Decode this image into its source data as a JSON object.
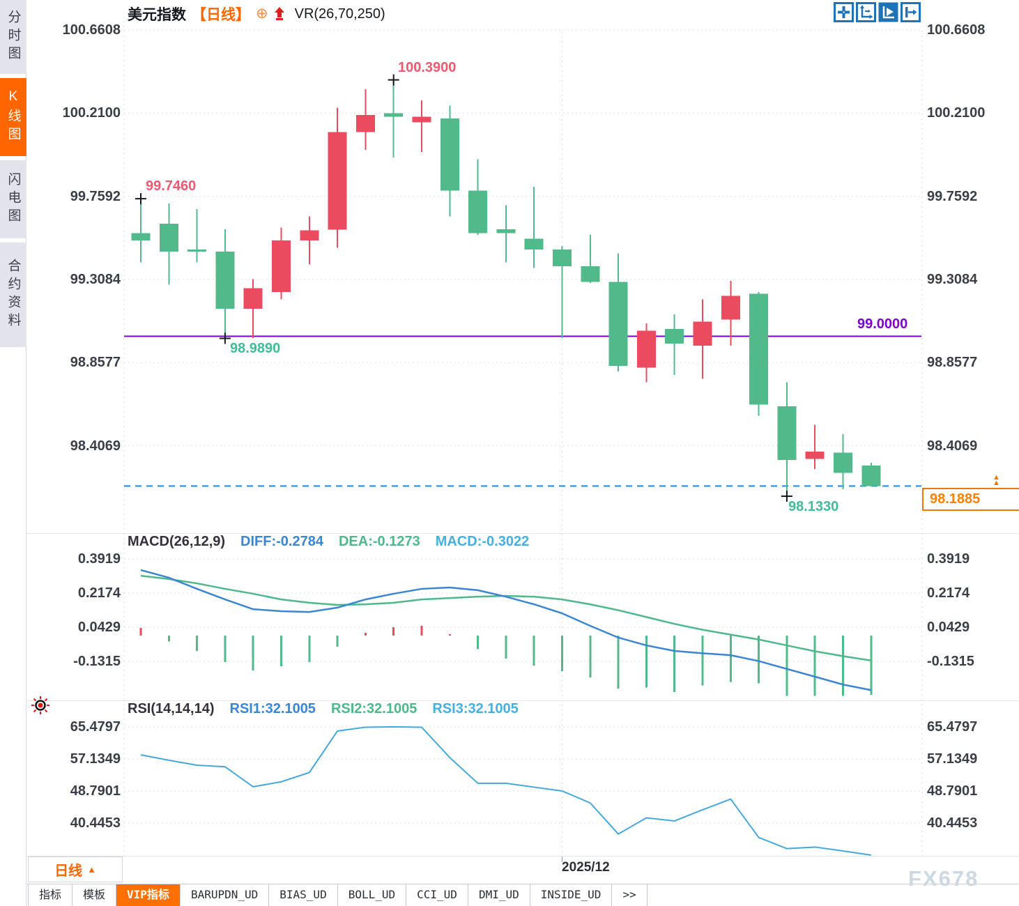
{
  "sidebar": {
    "tabs": [
      {
        "label": "分时图",
        "active": false
      },
      {
        "label": "K线图",
        "active": true
      },
      {
        "label": "闪电图",
        "active": false
      },
      {
        "label": "合约资料",
        "active": false
      }
    ]
  },
  "header": {
    "symbol": "美元指数",
    "period_tag": "【日线】",
    "overlay_indicator": "VR(26,70,250)"
  },
  "icons": {
    "add_overlay": "⊕",
    "triangle_up": "▲",
    "double_up_marker": "▲▲",
    "toolbar": [
      "crosshair-icon",
      "axis-scale-icon",
      "auto-scroll-icon",
      "jump-latest-icon"
    ]
  },
  "price_panel": {
    "y_axis": [
      "100.6608",
      "100.2100",
      "99.7592",
      "99.3084",
      "98.8577",
      "98.4069"
    ],
    "annotations": {
      "high_first": "99.7460",
      "high_peak": "100.3900",
      "low_first": "98.9890",
      "low_last": "98.1330"
    },
    "hline_label": "99.0000",
    "last_price": "98.1885"
  },
  "macd_panel": {
    "title": "MACD(26,12,9)",
    "diff_label": "DIFF:-0.2784",
    "dea_label": "DEA:-0.1273",
    "macd_label": "MACD:-0.3022",
    "y_axis": [
      "0.3919",
      "0.2174",
      "0.0429",
      "-0.1315"
    ]
  },
  "rsi_panel": {
    "title": "RSI(14,14,14)",
    "rsi1_label": "RSI1:32.1005",
    "rsi2_label": "RSI2:32.1005",
    "rsi3_label": "RSI3:32.1005",
    "y_axis": [
      "65.4797",
      "57.1349",
      "48.7901",
      "40.4453"
    ]
  },
  "bottom": {
    "timeframe": "日线",
    "date_label": "2025/12",
    "watermark": "FX678",
    "tabs": [
      {
        "label": "指标",
        "active": false
      },
      {
        "label": "模板",
        "active": false
      },
      {
        "label": "VIP指标",
        "active": true
      },
      {
        "label": "BARUPDN_UD",
        "active": false
      },
      {
        "label": "BIAS_UD",
        "active": false
      },
      {
        "label": "BOLL_UD",
        "active": false
      },
      {
        "label": "CCI_UD",
        "active": false
      },
      {
        "label": "DMI_UD",
        "active": false
      },
      {
        "label": "INSIDE_UD",
        "active": false
      },
      {
        "label": ">>",
        "active": false
      }
    ]
  },
  "colors": {
    "up": "#ea4b5f",
    "down": "#52b98b",
    "accent": "#ff6600",
    "diff_line": "#3a86d4",
    "dea_line": "#4db98b",
    "rsi_line": "#45a8dc",
    "hline": "#7d00cc",
    "last_price_dash": "#1e86e8",
    "toolbar_blue": "#1d72b8",
    "grid": "#e2e2ea",
    "marker_cross": "#15181d"
  },
  "chart_data": {
    "type": "candlestick",
    "title": "美元指数 日线 (US Dollar Index, daily)",
    "convention": "red=up(close>open), green=down",
    "panels": [
      "price",
      "MACD",
      "RSI"
    ],
    "price_axis_ticks": [
      100.6608,
      100.21,
      99.7592,
      99.3084,
      98.8577,
      98.4069
    ],
    "candles_ohlc": [
      [
        99.56,
        99.746,
        99.4,
        99.52
      ],
      [
        99.61,
        99.72,
        99.28,
        99.46
      ],
      [
        99.47,
        99.69,
        99.4,
        99.46
      ],
      [
        99.46,
        99.58,
        98.989,
        99.15
      ],
      [
        99.15,
        99.31,
        98.99,
        99.26
      ],
      [
        99.24,
        99.59,
        99.2,
        99.52
      ],
      [
        99.52,
        99.65,
        99.39,
        99.575
      ],
      [
        99.578,
        100.24,
        99.48,
        100.107
      ],
      [
        100.107,
        100.34,
        100.01,
        100.2
      ],
      [
        100.21,
        100.39,
        99.97,
        100.19
      ],
      [
        100.16,
        100.28,
        100.0,
        100.19
      ],
      [
        100.18,
        100.25,
        99.65,
        99.79
      ],
      [
        99.79,
        99.96,
        99.55,
        99.56
      ],
      [
        99.58,
        99.71,
        99.4,
        99.56
      ],
      [
        99.53,
        99.81,
        99.37,
        99.47
      ],
      [
        99.47,
        99.49,
        98.99,
        99.38
      ],
      [
        99.38,
        99.55,
        99.29,
        99.295
      ],
      [
        99.295,
        99.45,
        98.81,
        98.84
      ],
      [
        98.83,
        99.07,
        98.75,
        99.03
      ],
      [
        99.04,
        99.12,
        98.79,
        98.96
      ],
      [
        98.95,
        99.2,
        98.77,
        99.08
      ],
      [
        99.09,
        99.3,
        98.95,
        99.22
      ],
      [
        99.23,
        99.24,
        98.57,
        98.63
      ],
      [
        98.62,
        98.75,
        98.133,
        98.33
      ],
      [
        98.335,
        98.52,
        98.28,
        98.375
      ],
      [
        98.37,
        98.47,
        98.17,
        98.26
      ],
      [
        98.3,
        98.315,
        98.185,
        98.1885
      ]
    ],
    "extreme_markers": [
      {
        "index": 0,
        "price": 99.746,
        "label": "99.7460",
        "kind": "high"
      },
      {
        "index": 3,
        "price": 98.989,
        "label": "98.9890",
        "kind": "low"
      },
      {
        "index": 9,
        "price": 100.39,
        "label": "100.3900",
        "kind": "high"
      },
      {
        "index": 23,
        "price": 98.133,
        "label": "98.1330",
        "kind": "low"
      }
    ],
    "horizontal_line": 99.0,
    "last_price_line": 98.1885,
    "macd": {
      "params": [
        26,
        12,
        9
      ],
      "axis_ticks": [
        0.3919,
        0.2174,
        0.0429,
        -0.1315
      ],
      "diff": [
        0.335,
        0.296,
        0.239,
        0.185,
        0.135,
        0.125,
        0.121,
        0.143,
        0.185,
        0.214,
        0.239,
        0.246,
        0.232,
        0.199,
        0.16,
        0.114,
        0.05,
        -0.01,
        -0.05,
        -0.078,
        -0.09,
        -0.1,
        -0.13,
        -0.17,
        -0.21,
        -0.25,
        -0.2784
      ],
      "dea": [
        0.306,
        0.289,
        0.267,
        0.239,
        0.214,
        0.185,
        0.168,
        0.157,
        0.16,
        0.168,
        0.185,
        0.192,
        0.199,
        0.203,
        0.199,
        0.185,
        0.16,
        0.13,
        0.095,
        0.06,
        0.03,
        0.005,
        -0.02,
        -0.05,
        -0.08,
        -0.105,
        -0.1273
      ],
      "histogram": [
        0.04,
        -0.03,
        -0.078,
        -0.135,
        -0.178,
        -0.157,
        -0.135,
        -0.057,
        0.015,
        0.043,
        0.05,
        0.008,
        -0.07,
        -0.118,
        -0.153,
        -0.182,
        -0.213,
        -0.271,
        -0.266,
        -0.289,
        -0.254,
        -0.236,
        -0.243,
        -0.307,
        -0.307,
        -0.307,
        -0.3022
      ],
      "last": {
        "diff": -0.2784,
        "dea": -0.1273,
        "macd": -0.3022
      }
    },
    "rsi": {
      "params": [
        14,
        14,
        14
      ],
      "axis_ticks": [
        65.4797,
        57.1349,
        48.7901,
        40.4453
      ],
      "values": [
        58.2,
        56.8,
        55.5,
        55.1,
        49.9,
        51.2,
        53.6,
        64.4,
        65.4,
        65.5,
        65.4,
        57.5,
        50.8,
        50.8,
        49.8,
        48.8,
        45.7,
        37.6,
        41.8,
        41.0,
        43.9,
        46.7,
        36.7,
        33.8,
        34.2,
        33.2,
        32.1
      ],
      "last": {
        "rsi1": 32.1005,
        "rsi2": 32.1005,
        "rsi3": 32.1005
      }
    },
    "x_axis": {
      "month_label": "2025/12",
      "month_divider_index": 15
    }
  }
}
